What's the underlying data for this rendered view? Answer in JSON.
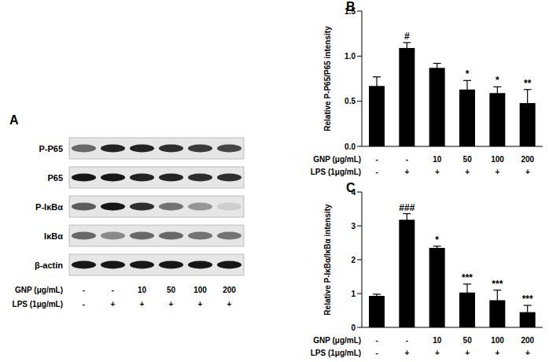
{
  "blot": {
    "title": "A",
    "rows": [
      {
        "name": "P-P65",
        "intensity": [
          0.55,
          0.85,
          0.85,
          0.8,
          0.75,
          0.7
        ]
      },
      {
        "name": "P65",
        "intensity": [
          0.9,
          0.9,
          0.85,
          0.85,
          0.8,
          0.8
        ]
      },
      {
        "name": "P-IκBα",
        "intensity": [
          0.6,
          0.9,
          0.8,
          0.5,
          0.35,
          0.1
        ]
      },
      {
        "name": "IκBα",
        "intensity": [
          0.55,
          0.4,
          0.55,
          0.55,
          0.5,
          0.5
        ]
      },
      {
        "name": "β-actin",
        "intensity": [
          0.9,
          0.9,
          0.9,
          0.9,
          0.9,
          0.9
        ]
      }
    ],
    "treatments": [
      {
        "label": "GNP (μg/mL)",
        "values": [
          "-",
          "-",
          "10",
          "50",
          "100",
          "200"
        ]
      },
      {
        "label": "LPS (1μg/mL)",
        "values": [
          "-",
          "+",
          "+",
          "+",
          "+",
          "+"
        ]
      }
    ]
  },
  "chart_data": [
    {
      "type": "bar",
      "title": "B",
      "y_label": "Relative P-P65/P65 intensity",
      "categories": [
        "-",
        "-",
        "10",
        "50",
        "100",
        "200"
      ],
      "category_label": "GNP (μg/mL)",
      "second_row_label": "LPS (1μg/mL)",
      "second_row": [
        "-",
        "+",
        "+",
        "+",
        "+",
        "+"
      ],
      "values": [
        0.67,
        1.09,
        0.87,
        0.63,
        0.59,
        0.48
      ],
      "errors": [
        0.1,
        0.06,
        0.05,
        0.1,
        0.07,
        0.15
      ],
      "significance": [
        null,
        "#",
        null,
        "*",
        "*",
        "**"
      ],
      "color": "#000000",
      "ylim": [
        0,
        1.5
      ],
      "yticks": [
        {
          "value": 0,
          "label": "0.0"
        },
        0.5,
        {
          "value": 1,
          "label": "1.0"
        },
        1.5
      ],
      "grid": false
    },
    {
      "type": "bar",
      "title": "C",
      "y_label": "Relative P-IκBα/IκBα intensity",
      "categories": [
        "-",
        "-",
        "10",
        "50",
        "100",
        "200"
      ],
      "category_label": "GNP (μg/mL)",
      "second_row_label": "LPS (1μg/mL)",
      "second_row": [
        "-",
        "+",
        "+",
        "+",
        "+",
        "+"
      ],
      "values": [
        0.93,
        3.18,
        2.35,
        1.03,
        0.8,
        0.45
      ],
      "errors": [
        0.05,
        0.18,
        0.05,
        0.25,
        0.3,
        0.2
      ],
      "significance": [
        null,
        "###",
        "*",
        "***",
        "***",
        "***"
      ],
      "color": "#000000",
      "ylim": [
        0,
        4
      ],
      "yticks": [
        0,
        1,
        2,
        3,
        4
      ],
      "grid": false
    }
  ]
}
